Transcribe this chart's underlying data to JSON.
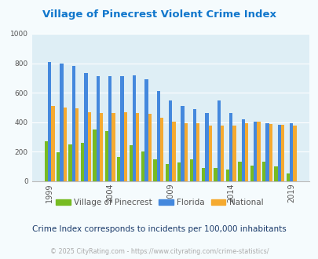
{
  "title": "Village of Pinecrest Violent Crime Index",
  "subtitle": "Crime Index corresponds to incidents per 100,000 inhabitants",
  "footer": "© 2025 CityRating.com - https://www.cityrating.com/crime-statistics/",
  "years": [
    1999,
    2000,
    2001,
    2002,
    2003,
    2004,
    2005,
    2006,
    2007,
    2008,
    2009,
    2010,
    2011,
    2012,
    2013,
    2014,
    2015,
    2016,
    2017,
    2018,
    2019,
    2020,
    2021
  ],
  "pinecrest": [
    270,
    195,
    250,
    260,
    350,
    340,
    165,
    245,
    200,
    150,
    115,
    125,
    150,
    90,
    90,
    80,
    135,
    105,
    135,
    100,
    55,
    0,
    0
  ],
  "florida": [
    808,
    800,
    780,
    735,
    710,
    710,
    715,
    720,
    690,
    610,
    545,
    510,
    490,
    460,
    545,
    465,
    420,
    405,
    395,
    385,
    395,
    0,
    0
  ],
  "national": [
    510,
    500,
    495,
    470,
    465,
    465,
    470,
    465,
    455,
    430,
    405,
    395,
    395,
    375,
    380,
    375,
    395,
    405,
    390,
    385,
    380,
    0,
    0
  ],
  "pinecrest_color": "#77bb22",
  "florida_color": "#4488dd",
  "national_color": "#f5aa30",
  "fig_bg": "#f5fbfd",
  "plot_bg": "#deeef5",
  "title_color": "#1177cc",
  "subtitle_color": "#1a3a6a",
  "text_color": "#555555",
  "footer_color": "#aaaaaa",
  "ylim": [
    0,
    1000
  ],
  "yticks": [
    0,
    200,
    400,
    600,
    800,
    1000
  ],
  "xtick_years": [
    1999,
    2004,
    2009,
    2014,
    2019
  ]
}
